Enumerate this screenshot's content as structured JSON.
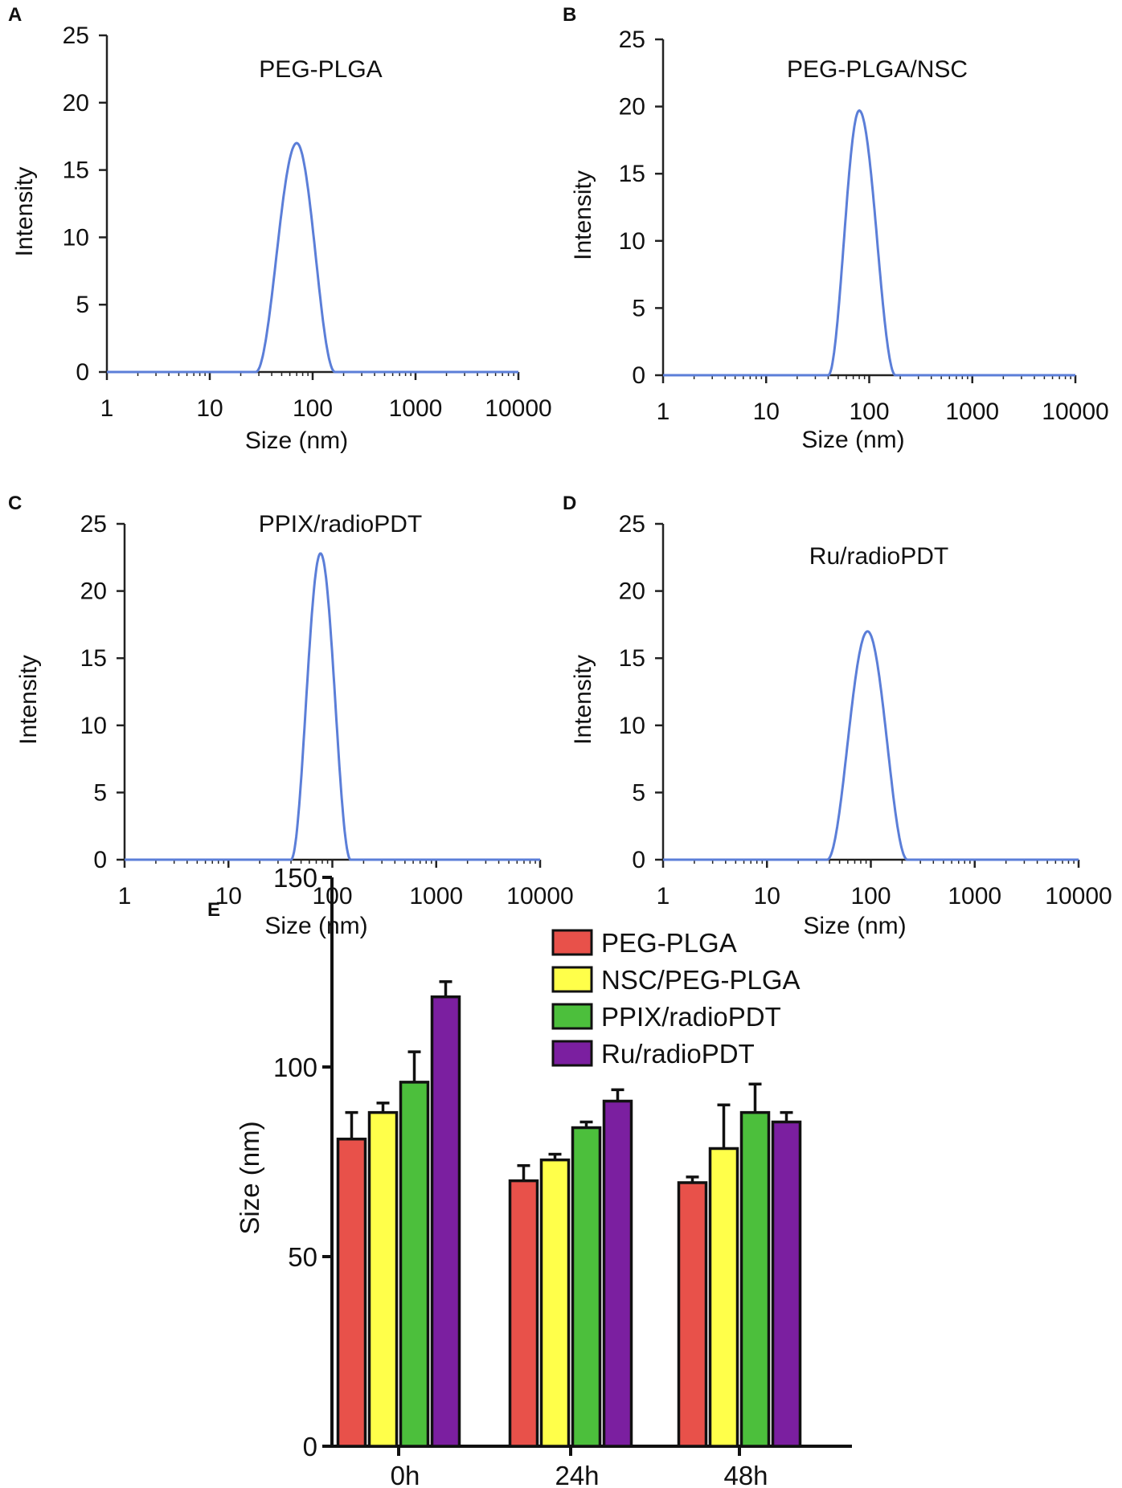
{
  "chart_data": [
    {
      "panel": "A",
      "type": "line",
      "title": "PEG-PLGA",
      "xlabel": "Size (nm)",
      "ylabel": "Intensity",
      "xscale": "log",
      "xlim": [
        1,
        10000
      ],
      "ylim": [
        0,
        25
      ],
      "x_ticks": [
        "1",
        "10",
        "100",
        "1000",
        "10000"
      ],
      "y_ticks": [
        "0",
        "5",
        "10",
        "15",
        "20",
        "25"
      ],
      "series": [
        {
          "name": "PEG-PLGA",
          "color": "#5b7ed8",
          "peak_x": 70,
          "peak_y": 17.0,
          "x_start": 28,
          "x_end": 165
        }
      ]
    },
    {
      "panel": "B",
      "type": "line",
      "title": "PEG-PLGA/NSC",
      "xlabel": "Size (nm)",
      "ylabel": "Intensity",
      "xscale": "log",
      "xlim": [
        1,
        10000
      ],
      "ylim": [
        0,
        25
      ],
      "x_ticks": [
        "1",
        "10",
        "100",
        "1000",
        "10000"
      ],
      "y_ticks": [
        "0",
        "5",
        "10",
        "15",
        "20",
        "25"
      ],
      "series": [
        {
          "name": "PEG-PLGA/NSC",
          "color": "#5b7ed8",
          "peak_x": 80,
          "peak_y": 19.7,
          "x_start": 40,
          "x_end": 180
        }
      ]
    },
    {
      "panel": "C",
      "type": "line",
      "title": "PPIX/radioPDT",
      "xlabel": "Size (nm)",
      "ylabel": "Intensity",
      "xscale": "log",
      "xlim": [
        1,
        10000
      ],
      "ylim": [
        0,
        25
      ],
      "x_ticks": [
        "1",
        "10",
        "100",
        "1000",
        "10000"
      ],
      "y_ticks": [
        "0",
        "5",
        "10",
        "15",
        "20",
        "25"
      ],
      "series": [
        {
          "name": "PPIX/radioPDT",
          "color": "#5b7ed8",
          "peak_x": 77,
          "peak_y": 22.8,
          "x_start": 40,
          "x_end": 150
        }
      ]
    },
    {
      "panel": "D",
      "type": "line",
      "title": "Ru/radioPDT",
      "xlabel": "Size (nm)",
      "ylabel": "Intensity",
      "xscale": "log",
      "xlim": [
        1,
        10000
      ],
      "ylim": [
        0,
        25
      ],
      "x_ticks": [
        "1",
        "10",
        "100",
        "1000",
        "10000"
      ],
      "y_ticks": [
        "0",
        "5",
        "10",
        "15",
        "20",
        "25"
      ],
      "series": [
        {
          "name": "Ru/radioPDT",
          "color": "#5b7ed8",
          "peak_x": 93,
          "peak_y": 17.0,
          "x_start": 38,
          "x_end": 225
        }
      ]
    },
    {
      "panel": "E",
      "type": "bar",
      "title": "",
      "xlabel": "",
      "ylabel": "Size (nm)",
      "ylim": [
        0,
        150
      ],
      "y_ticks": [
        "0",
        "50",
        "100",
        "150"
      ],
      "categories": [
        "0h",
        "24h",
        "48h"
      ],
      "legend_position": "top-right",
      "series": [
        {
          "name": "PEG-PLGA",
          "color": "#e8514a",
          "values": [
            81,
            70,
            69.5
          ],
          "errors": [
            7,
            4,
            1.5
          ]
        },
        {
          "name": "NSC/PEG-PLGA",
          "color": "#ffff4a",
          "values": [
            88,
            75.5,
            78.5
          ],
          "errors": [
            2.5,
            1.5,
            11.5
          ]
        },
        {
          "name": "PPIX/radioPDT",
          "color": "#4cbf3c",
          "values": [
            96,
            84,
            88
          ],
          "errors": [
            8,
            1.5,
            7.5
          ]
        },
        {
          "name": "Ru/radioPDT",
          "color": "#7b1fa0",
          "values": [
            118.5,
            91,
            85.5
          ],
          "errors": [
            4,
            3,
            2.5
          ]
        }
      ]
    }
  ]
}
